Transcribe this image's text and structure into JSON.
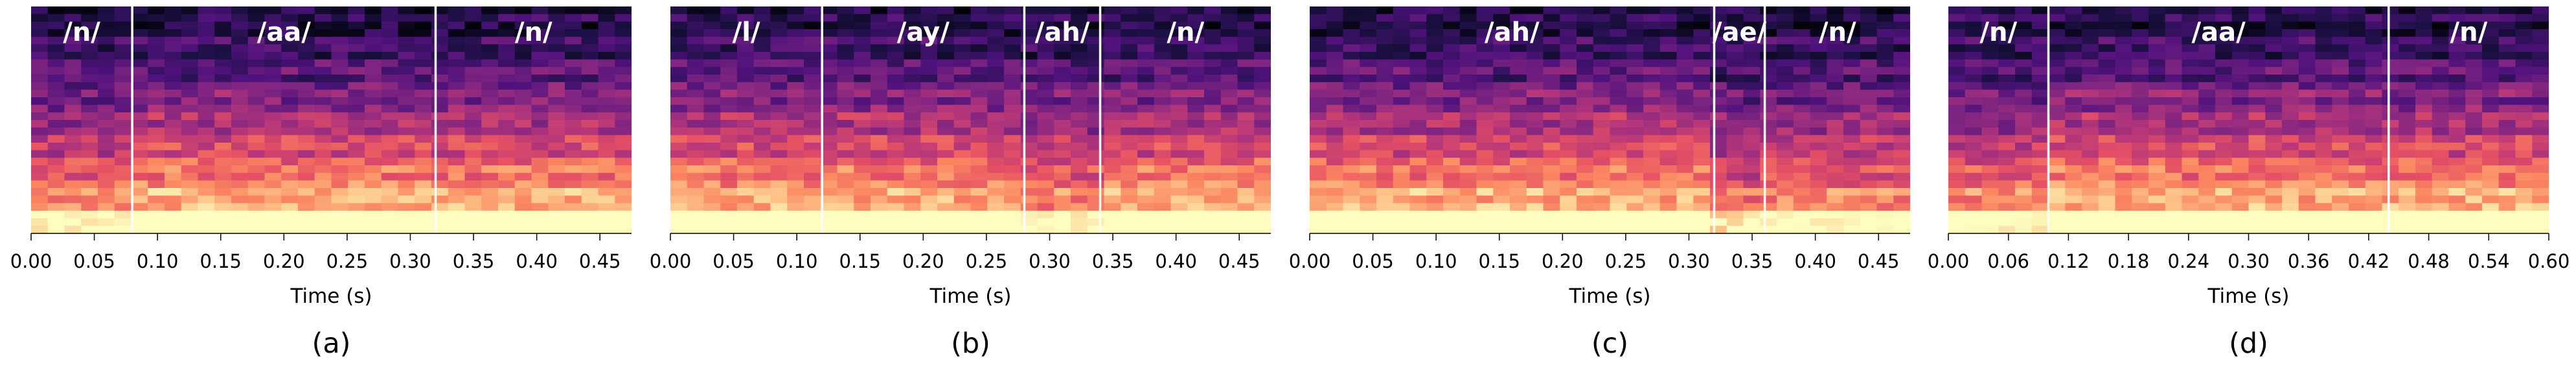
{
  "colors": {
    "colormap": [
      "#000004",
      "#1c1044",
      "#4f127b",
      "#812581",
      "#b5367a",
      "#e55064",
      "#fb8761",
      "#fec287",
      "#fcfdbf"
    ],
    "boundary_line": "#ffffff",
    "phoneme_label": "#ffffff",
    "axis": "#000000"
  },
  "chart_data": [
    {
      "type": "heatmap",
      "panel_label": "(a)",
      "xlabel": "Time (s)",
      "xlim": [
        0,
        0.475
      ],
      "x_ticks": [
        "0.00",
        "0.05",
        "0.10",
        "0.15",
        "0.20",
        "0.25",
        "0.30",
        "0.35",
        "0.40",
        "0.45"
      ],
      "x_tick_values": [
        0,
        0.05,
        0.1,
        0.15,
        0.2,
        0.25,
        0.3,
        0.35,
        0.4,
        0.45
      ],
      "boundaries": [
        0.08,
        0.32
      ],
      "segments": [
        {
          "label": "/n/",
          "start": 0.0,
          "end": 0.08
        },
        {
          "label": "/aa/",
          "start": 0.08,
          "end": 0.32
        },
        {
          "label": "/n/",
          "start": 0.32,
          "end": 0.475
        }
      ]
    },
    {
      "type": "heatmap",
      "panel_label": "(b)",
      "xlabel": "Time (s)",
      "xlim": [
        0,
        0.475
      ],
      "x_ticks": [
        "0.00",
        "0.05",
        "0.10",
        "0.15",
        "0.20",
        "0.25",
        "0.30",
        "0.35",
        "0.40",
        "0.45"
      ],
      "x_tick_values": [
        0,
        0.05,
        0.1,
        0.15,
        0.2,
        0.25,
        0.3,
        0.35,
        0.4,
        0.45
      ],
      "boundaries": [
        0.12,
        0.28,
        0.34
      ],
      "segments": [
        {
          "label": "/l/",
          "start": 0.0,
          "end": 0.12
        },
        {
          "label": "/ay/",
          "start": 0.12,
          "end": 0.28
        },
        {
          "label": "/ah/",
          "start": 0.28,
          "end": 0.34
        },
        {
          "label": "/n/",
          "start": 0.34,
          "end": 0.475
        }
      ]
    },
    {
      "type": "heatmap",
      "panel_label": "(c)",
      "xlabel": "Time (s)",
      "xlim": [
        0,
        0.475
      ],
      "x_ticks": [
        "0.00",
        "0.05",
        "0.10",
        "0.15",
        "0.20",
        "0.25",
        "0.30",
        "0.35",
        "0.40",
        "0.45"
      ],
      "x_tick_values": [
        0,
        0.05,
        0.1,
        0.15,
        0.2,
        0.25,
        0.3,
        0.35,
        0.4,
        0.45
      ],
      "boundaries": [
        0.32,
        0.36
      ],
      "segments": [
        {
          "label": "/ah/",
          "start": 0.0,
          "end": 0.32
        },
        {
          "label": "/ae/",
          "start": 0.32,
          "end": 0.36
        },
        {
          "label": "/n/",
          "start": 0.36,
          "end": 0.475
        }
      ]
    },
    {
      "type": "heatmap",
      "panel_label": "(d)",
      "xlabel": "Time (s)",
      "xlim": [
        0,
        0.6
      ],
      "x_ticks": [
        "0.00",
        "0.06",
        "0.12",
        "0.18",
        "0.24",
        "0.30",
        "0.36",
        "0.42",
        "0.48",
        "0.54",
        "0.60"
      ],
      "x_tick_values": [
        0,
        0.06,
        0.12,
        0.18,
        0.24,
        0.3,
        0.36,
        0.42,
        0.48,
        0.54,
        0.6
      ],
      "boundaries": [
        0.1,
        0.44
      ],
      "segments": [
        {
          "label": "/n/",
          "start": 0.0,
          "end": 0.1
        },
        {
          "label": "/aa/",
          "start": 0.1,
          "end": 0.44
        },
        {
          "label": "/n/",
          "start": 0.44,
          "end": 0.6
        }
      ]
    }
  ]
}
